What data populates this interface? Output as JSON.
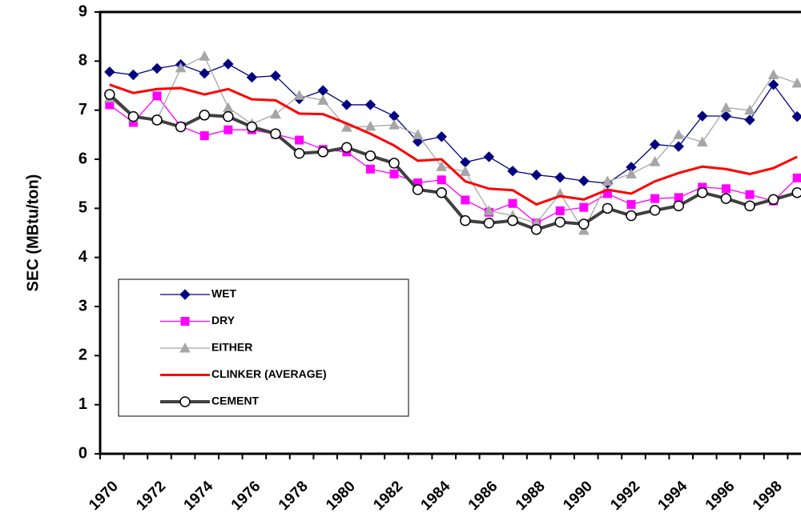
{
  "chart_data": {
    "type": "line",
    "y_label": "SEC (MBtu/ton)",
    "categories": [
      "1970",
      null,
      "1972",
      null,
      "1974",
      null,
      "1976",
      null,
      "1978",
      null,
      "1980",
      null,
      "1982",
      null,
      "1984",
      null,
      "1986",
      null,
      "1988",
      null,
      "1990",
      null,
      "1992",
      null,
      "1994",
      null,
      "1996",
      null,
      "1998",
      null
    ],
    "ylim": [
      0,
      9
    ],
    "yticks": [
      0,
      1,
      2,
      3,
      4,
      5,
      6,
      7,
      8,
      9
    ],
    "grid": false,
    "legend": "lower-left",
    "series": [
      {
        "name": "WET",
        "color": "#000080",
        "marker": "diamond",
        "values": [
          7.78,
          7.72,
          7.85,
          7.93,
          7.75,
          7.94,
          7.67,
          7.7,
          7.23,
          7.4,
          7.11,
          7.11,
          6.88,
          6.36,
          6.46,
          5.94,
          6.05,
          5.76,
          5.68,
          5.63,
          5.56,
          5.51,
          5.84,
          6.3,
          6.26,
          6.88,
          6.88,
          6.8,
          7.52,
          6.87
        ]
      },
      {
        "name": "DRY",
        "color": "#ff00ff",
        "marker": "square",
        "values": [
          7.11,
          6.75,
          7.29,
          6.67,
          6.48,
          6.6,
          6.6,
          6.51,
          6.39,
          6.2,
          6.15,
          5.8,
          5.7,
          5.52,
          5.58,
          5.17,
          4.92,
          5.1,
          4.7,
          4.95,
          5.02,
          5.3,
          5.08,
          5.2,
          5.22,
          5.43,
          5.4,
          5.28,
          5.15,
          5.62
        ]
      },
      {
        "name": "EITHER",
        "color": "#a6a6a6",
        "marker": "triangle",
        "values": [
          7.25,
          6.85,
          6.8,
          7.86,
          8.1,
          7.05,
          6.72,
          6.92,
          7.3,
          7.2,
          6.65,
          6.67,
          6.7,
          6.5,
          5.85,
          5.75,
          4.95,
          4.85,
          4.7,
          5.3,
          4.55,
          5.55,
          5.7,
          5.95,
          6.5,
          6.35,
          7.05,
          7.0,
          7.72,
          7.55
        ]
      },
      {
        "name": "CLINKER (AVERAGE)",
        "color": "#ff0000",
        "marker": "none",
        "values": [
          7.52,
          7.35,
          7.43,
          7.45,
          7.32,
          7.43,
          7.22,
          7.2,
          6.93,
          6.92,
          6.73,
          6.52,
          6.28,
          5.97,
          6.0,
          5.55,
          5.4,
          5.37,
          5.08,
          5.25,
          5.18,
          5.38,
          5.3,
          5.55,
          5.72,
          5.85,
          5.8,
          5.7,
          5.82,
          6.05
        ]
      },
      {
        "name": "CEMENT",
        "color": "#404040",
        "marker": "circle",
        "values": [
          7.32,
          6.87,
          6.8,
          6.66,
          6.9,
          6.87,
          6.66,
          6.52,
          6.12,
          6.15,
          6.24,
          6.07,
          5.92,
          5.38,
          5.32,
          4.75,
          4.7,
          4.75,
          4.57,
          4.72,
          4.68,
          5.0,
          4.85,
          4.96,
          5.05,
          5.32,
          5.2,
          5.05,
          5.18,
          5.32
        ]
      }
    ]
  }
}
